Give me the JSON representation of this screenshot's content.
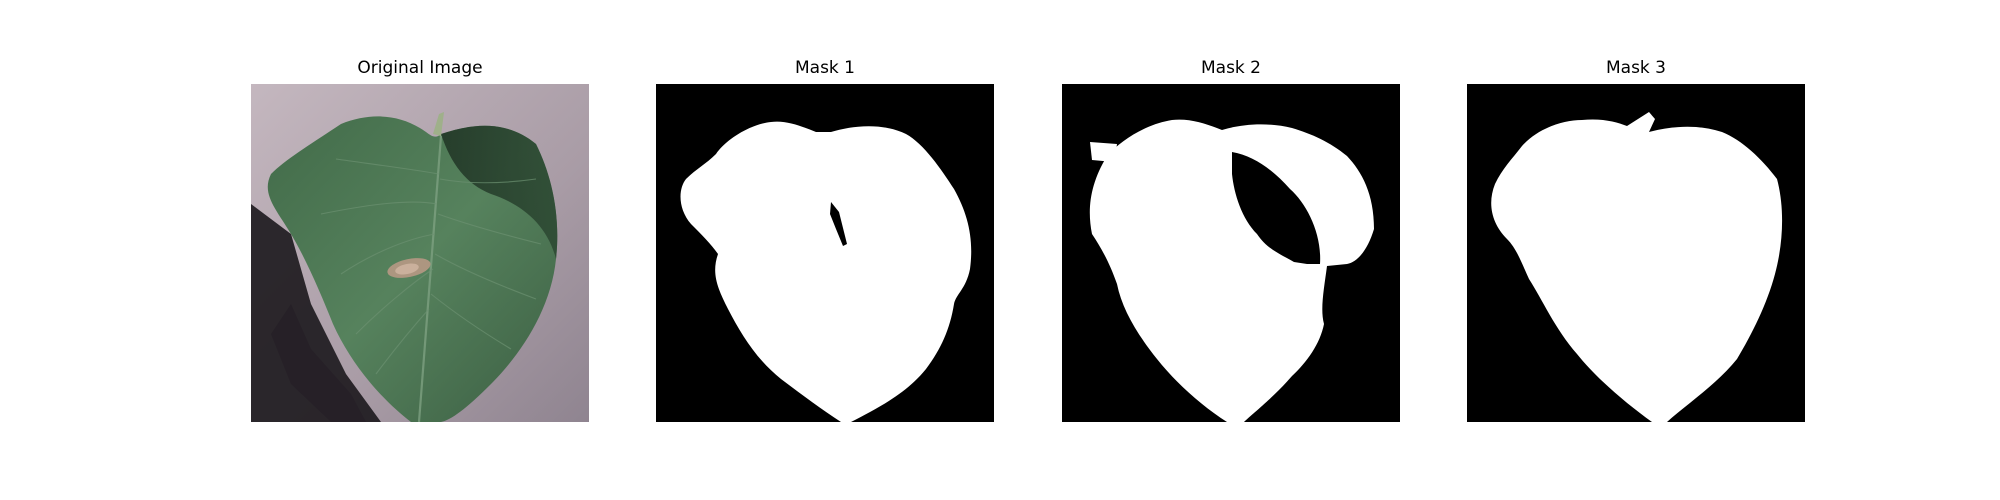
{
  "panels": [
    {
      "title": "Original Image"
    },
    {
      "title": "Mask 1"
    },
    {
      "title": "Mask 2"
    },
    {
      "title": "Mask 3"
    }
  ],
  "colors": {
    "figure_background": "#ffffff",
    "mask_background": "#000000",
    "mask_foreground": "#ffffff",
    "leaf_dark": "#2f4a33",
    "leaf_mid": "#4f7a56",
    "surface": "#b7abb3",
    "shadow": "#1c181d"
  }
}
